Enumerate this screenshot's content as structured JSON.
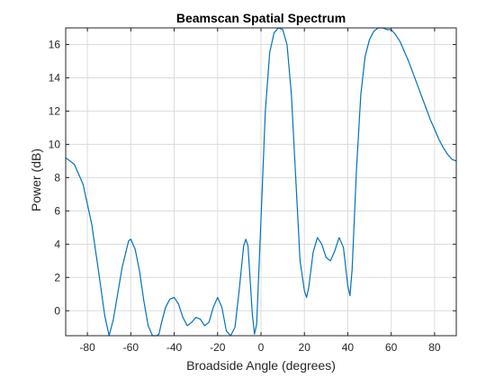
{
  "chart_data": {
    "type": "line",
    "title": "Beamscan Spatial Spectrum",
    "xlabel": "Broadside Angle (degrees)",
    "ylabel": "Power (dB)",
    "xlim": [
      -90,
      90
    ],
    "ylim": [
      -1.5,
      17
    ],
    "xticks": [
      -80,
      -60,
      -40,
      -20,
      0,
      20,
      40,
      60,
      80
    ],
    "yticks": [
      0,
      2,
      4,
      6,
      8,
      10,
      12,
      14,
      16
    ],
    "grid": true,
    "line_color": "#0072BD",
    "series": [
      {
        "x": [
          -90,
          -86,
          -82,
          -78,
          -75,
          -72,
          -70,
          -68,
          -64,
          -61,
          -60,
          -58,
          -56,
          -54,
          -52,
          -50,
          -48,
          -47,
          -46,
          -44,
          -42,
          -40,
          -38,
          -36,
          -34,
          -32,
          -30,
          -28,
          -26,
          -24,
          -22,
          -20,
          -18,
          -16,
          -14,
          -12,
          -10,
          -8,
          -7,
          -6,
          -4,
          -3,
          -2,
          0,
          2,
          4,
          6,
          8,
          10,
          12,
          14,
          16,
          18,
          20,
          21,
          22,
          24,
          26,
          28,
          30,
          32,
          34,
          36,
          38,
          40,
          41,
          42,
          44,
          46,
          48,
          50,
          52,
          54,
          56,
          58,
          60,
          62,
          64,
          66,
          68,
          70,
          72,
          74,
          76,
          78,
          80,
          82,
          84,
          86,
          88,
          90
        ],
        "y": [
          9.2,
          8.8,
          7.6,
          5.2,
          2.5,
          -0.3,
          -1.5,
          -0.5,
          2.6,
          4.2,
          4.3,
          3.7,
          2.4,
          0.6,
          -0.9,
          -1.5,
          -1.5,
          -1.4,
          -0.8,
          0.2,
          0.7,
          0.8,
          0.4,
          -0.4,
          -0.9,
          -0.7,
          -0.4,
          -0.5,
          -0.9,
          -0.7,
          0.2,
          0.8,
          0.2,
          -1.2,
          -1.5,
          -1.0,
          1.3,
          3.9,
          4.3,
          3.9,
          -0.2,
          -1.4,
          -0.8,
          5.5,
          12.0,
          15.5,
          16.7,
          17.0,
          16.9,
          16.0,
          13.0,
          8.0,
          3.0,
          1.2,
          0.8,
          1.4,
          3.5,
          4.4,
          4.0,
          3.2,
          3.0,
          3.6,
          4.4,
          3.8,
          1.5,
          0.9,
          2.5,
          8.5,
          13.0,
          15.3,
          16.3,
          16.8,
          17.0,
          17.0,
          16.9,
          16.9,
          16.6,
          16.2,
          15.6,
          15.0,
          14.3,
          13.6,
          12.9,
          12.2,
          11.5,
          10.9,
          10.3,
          9.8,
          9.4,
          9.1,
          9.0
        ]
      }
    ]
  }
}
